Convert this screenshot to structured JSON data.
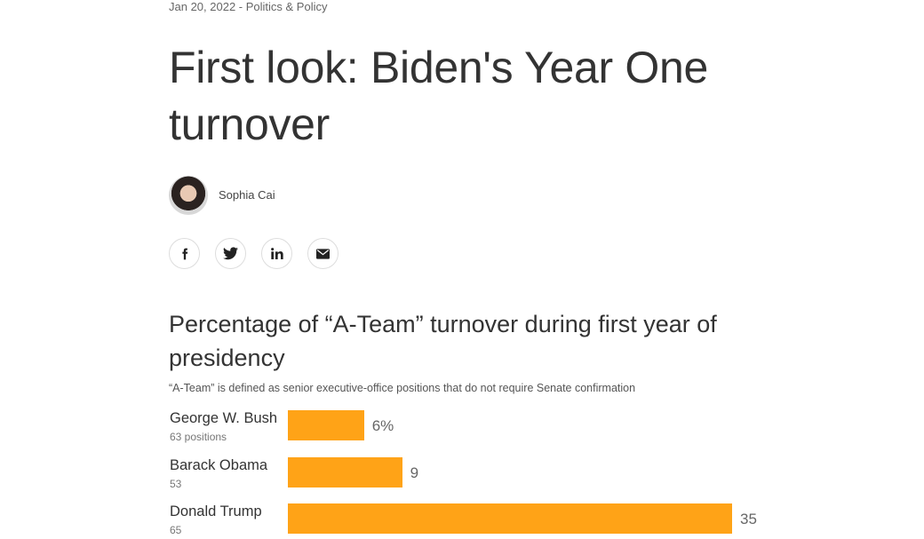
{
  "article": {
    "meta": "Jan 20, 2022 - Politics & Policy",
    "title": "First look: Biden's Year One turnover",
    "author": "Sophia Cai"
  },
  "social": [
    {
      "name": "facebook-icon"
    },
    {
      "name": "twitter-icon"
    },
    {
      "name": "linkedin-icon"
    },
    {
      "name": "email-icon"
    }
  ],
  "chart_data": {
    "type": "bar",
    "orientation": "horizontal",
    "title": "Percentage of “A-Team” turnover during first year of presidency",
    "subtitle": "“A-Team” is defined as senior executive-office positions that do not require Senate confirmation",
    "categories": [
      "George W. Bush",
      "Barack Obama",
      "Donald Trump"
    ],
    "sublabels": [
      "63 positions",
      "53",
      "65"
    ],
    "values": [
      6,
      9,
      35
    ],
    "value_labels": [
      "6%",
      "9",
      "35"
    ],
    "color": "#ffa317",
    "xlim": [
      0,
      35
    ],
    "grid": false
  }
}
